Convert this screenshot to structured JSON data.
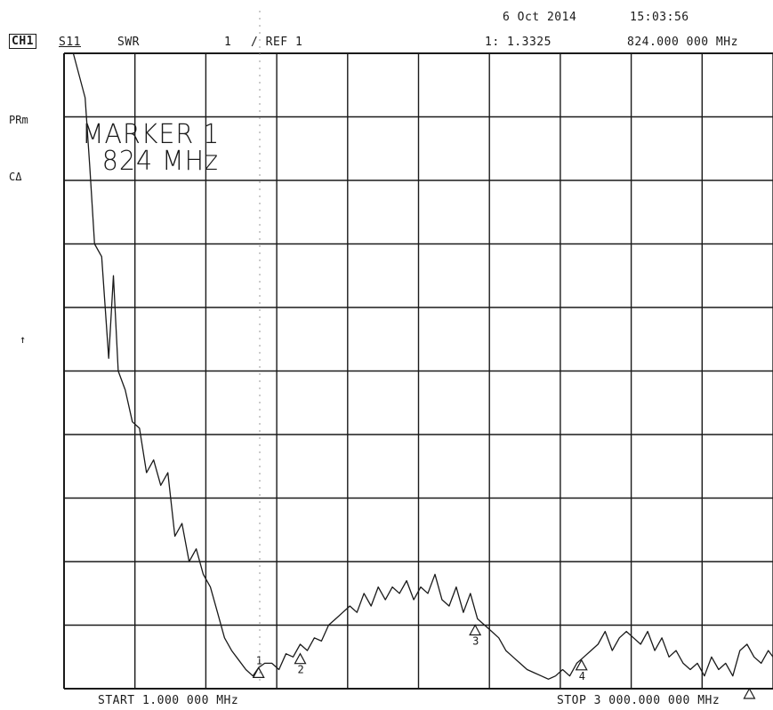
{
  "header": {
    "date": "6 Oct 2014",
    "time": "15:03:56",
    "channel": "CH1",
    "param": "S11",
    "format": "SWR",
    "scale": "1",
    "ref": "/ REF 1",
    "marker_readout_value": "1: 1.3325",
    "marker_readout_freq": "824.000 000 MHz"
  },
  "side_labels": {
    "prm": "PRm",
    "ca": "CΔ",
    "arrow": "↑"
  },
  "marker_annotation": {
    "line1": "MARKER 1",
    "line2": "824 MHz"
  },
  "footer": {
    "start": "START   1.000 000 MHz",
    "stop": "STOP 3 000.000 000 MHz"
  },
  "chart_data": {
    "type": "line",
    "title": "",
    "xlabel": "",
    "ylabel": "",
    "xlim": [
      1,
      3000
    ],
    "x_unit": "MHz",
    "ylim": [
      1,
      11
    ],
    "y_divisions": 10,
    "x_divisions": 10,
    "grid": true,
    "series": [
      {
        "x": [
          1,
          40,
          90,
          110,
          130,
          160,
          190,
          210,
          230,
          260,
          290,
          320,
          350,
          380,
          410,
          440,
          470,
          500,
          530,
          560,
          590,
          620,
          650,
          680,
          710,
          740,
          770,
          800,
          824,
          850,
          880,
          910,
          940,
          970,
          1000,
          1030,
          1060,
          1090,
          1120,
          1150,
          1180,
          1210,
          1240,
          1270,
          1300,
          1330,
          1360,
          1390,
          1420,
          1450,
          1480,
          1510,
          1540,
          1570,
          1600,
          1630,
          1660,
          1690,
          1720,
          1750,
          1780,
          1810,
          1840,
          1870,
          1900,
          1930,
          1960,
          1990,
          2020,
          2050,
          2080,
          2110,
          2140,
          2170,
          2200,
          2230,
          2260,
          2290,
          2320,
          2350,
          2380,
          2410,
          2440,
          2470,
          2500,
          2530,
          2560,
          2590,
          2620,
          2650,
          2680,
          2710,
          2740,
          2770,
          2800,
          2830,
          2860,
          2890,
          2920,
          2950,
          2980,
          3000
        ],
        "y": [
          11,
          11,
          10.3,
          9.2,
          8.0,
          7.8,
          6.2,
          7.5,
          6.0,
          5.7,
          5.2,
          5.1,
          4.4,
          4.6,
          4.2,
          4.4,
          3.4,
          3.6,
          3.0,
          3.2,
          2.8,
          2.6,
          2.2,
          1.8,
          1.6,
          1.45,
          1.3,
          1.2,
          1.33,
          1.4,
          1.4,
          1.3,
          1.55,
          1.5,
          1.7,
          1.6,
          1.8,
          1.75,
          2.0,
          2.1,
          2.2,
          2.3,
          2.2,
          2.5,
          2.3,
          2.6,
          2.4,
          2.6,
          2.5,
          2.7,
          2.4,
          2.6,
          2.5,
          2.8,
          2.4,
          2.3,
          2.6,
          2.2,
          2.5,
          2.1,
          2.0,
          1.9,
          1.8,
          1.6,
          1.5,
          1.4,
          1.3,
          1.25,
          1.2,
          1.15,
          1.2,
          1.3,
          1.2,
          1.4,
          1.5,
          1.6,
          1.7,
          1.9,
          1.6,
          1.8,
          1.9,
          1.8,
          1.7,
          1.9,
          1.6,
          1.8,
          1.5,
          1.6,
          1.4,
          1.3,
          1.4,
          1.2,
          1.5,
          1.3,
          1.4,
          1.2,
          1.6,
          1.7,
          1.5,
          1.4,
          1.6,
          1.5
        ]
      }
    ],
    "markers": [
      {
        "label": "1",
        "x": 824,
        "y": 1.33
      },
      {
        "label": "2",
        "x": 1000,
        "y": 1.55
      },
      {
        "label": "3",
        "x": 1740,
        "y": 2.0
      },
      {
        "label": "4",
        "x": 2190,
        "y": 1.45
      },
      {
        "label": "",
        "x": 2900,
        "y": 1.0
      }
    ]
  }
}
